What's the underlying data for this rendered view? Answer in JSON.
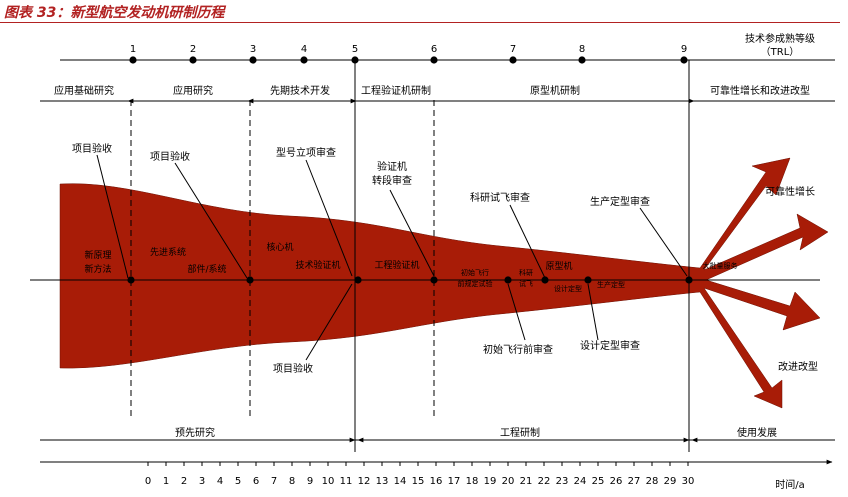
{
  "figure_title": "图表 33：新型航空发动机研制历程",
  "trl": {
    "header_line1": "技术参成熟等级",
    "header_line2": "（TRL）",
    "levels": [
      "1",
      "2",
      "3",
      "4",
      "5",
      "6",
      "7",
      "8",
      "9"
    ]
  },
  "phases": [
    "应用基础研究",
    "应用研究",
    "先期技术开发",
    "工程验证机研制",
    "原型机研制",
    "可靠性增长和改进改型"
  ],
  "callouts": {
    "project_accept_1": "项目验收",
    "project_accept_2": "项目验收",
    "model_review": "型号立项审查",
    "verif_review_l1": "验证机",
    "verif_review_l2": "转段审查",
    "sci_flight_review": "科研试飞审查",
    "production_review": "生产定型审查",
    "project_accept_3": "项目验收",
    "first_flight_review": "初始飞行前审查",
    "design_review": "设计定型审查"
  },
  "inner_labels": {
    "new_principle_l1": "新原理",
    "new_principle_l2": "新方法",
    "advanced_system": "先进系统",
    "component_system": "部件/系统",
    "core_engine": "核心机",
    "tech_verif_engine": "技术验证机",
    "eng_verif_engine": "工程验证机",
    "first_flight_l1": "初始飞行",
    "first_flight_l2": "前规定试验",
    "sci_flight_l1": "科研",
    "sci_flight_l2": "试飞",
    "prototype": "原型机",
    "design_final": "设计定型",
    "production_final": "生产定型",
    "mass_production": "大批量服务"
  },
  "arrow_labels": {
    "reliability_growth": "可靠性增长",
    "improve_modify": "改进改型"
  },
  "bottom_phases": [
    "预先研究",
    "工程研制",
    "使用发展"
  ],
  "time_axis": {
    "ticks": [
      "0",
      "1",
      "2",
      "3",
      "4",
      "5",
      "6",
      "7",
      "8",
      "9",
      "10",
      "11",
      "12",
      "13",
      "14",
      "15",
      "16",
      "17",
      "18",
      "19",
      "20",
      "21",
      "22",
      "23",
      "24",
      "25",
      "26",
      "27",
      "28",
      "29",
      "30"
    ],
    "label": "时间/a"
  },
  "colors": {
    "fill": "#a81c07",
    "title": "#b22222",
    "line": "#000000"
  }
}
